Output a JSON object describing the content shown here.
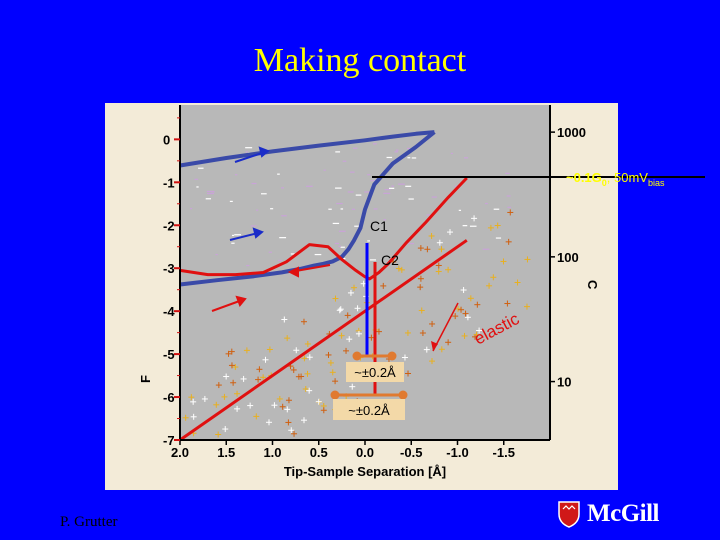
{
  "slide": {
    "title": "Making contact",
    "author": "P. Grutter",
    "logo_text": "McGill"
  },
  "colors": {
    "background": "#0000ff",
    "title": "#ffff00",
    "panel": "#f3ebd8",
    "plot": "#b8b8b8",
    "conductance": "#3a4aa8",
    "force": "#e01010",
    "marker": "#e07a30"
  },
  "chart_data": {
    "type": "line",
    "xlabel": "Tip-Sample Separation [Å]",
    "xticks": [
      "2.0",
      "1.5",
      "1.0",
      "0.5",
      "0.0",
      "-0.5",
      "-1.0",
      "-1.5"
    ],
    "xlim": [
      2.0,
      -2.0
    ],
    "y_left": {
      "label": "F",
      "ticks": [
        "0",
        "-1",
        "-2",
        "-3",
        "-4",
        "-5",
        "-6",
        "-7"
      ],
      "ylim": [
        -7,
        0.8
      ]
    },
    "y_right": {
      "label": "C",
      "scale": "log",
      "ticks": [
        "1000",
        "100",
        "10"
      ],
      "ylim": [
        3.4,
        1650
      ]
    },
    "annotations": {
      "c1": "C1",
      "c2": "C2",
      "elastic": "elastic",
      "threshold_main": "~0.1G",
      "threshold_sub": "0",
      "threshold_after": ", 50mV",
      "threshold_bias": "bias",
      "bracket1": "~±0.2Å",
      "bracket2": "~±0.2Å"
    },
    "series": [
      {
        "role": "conductance-approach",
        "x": [
          2.0,
          1.6,
          1.2,
          0.9,
          0.7,
          0.55,
          0.45,
          0.35,
          0.25,
          0.18,
          0.12,
          0.05,
          0.0,
          -0.1,
          -0.3,
          -0.55,
          -0.75
        ],
        "y": [
          60,
          65,
          70,
          75,
          80,
          85,
          88,
          92,
          100,
          115,
          135,
          170,
          240,
          380,
          560,
          760,
          1000
        ]
      },
      {
        "role": "conductance-retract",
        "x": [
          2.0,
          1.5,
          1.0,
          0.5,
          0.0,
          -0.3,
          -0.55,
          -0.75
        ],
        "y": [
          540,
          620,
          700,
          780,
          860,
          920,
          970,
          1000
        ]
      },
      {
        "role": "force",
        "x": [
          2.0,
          1.7,
          1.4,
          1.1,
          0.85,
          0.6,
          0.4,
          0.25,
          0.1,
          0.0,
          -0.05,
          -0.15,
          -0.25,
          -0.45,
          -0.65,
          -0.9,
          -1.1
        ],
        "y": [
          -3.05,
          -3.15,
          -3.15,
          -3.1,
          -2.85,
          -2.45,
          -2.5,
          -2.8,
          -3.05,
          -3.2,
          -3.25,
          -3.1,
          -2.9,
          -2.4,
          -1.95,
          -1.35,
          -0.9
        ]
      },
      {
        "role": "elastic-fit",
        "x": [
          2.0,
          -1.1
        ],
        "y": [
          -7.0,
          -2.35
        ]
      }
    ]
  }
}
